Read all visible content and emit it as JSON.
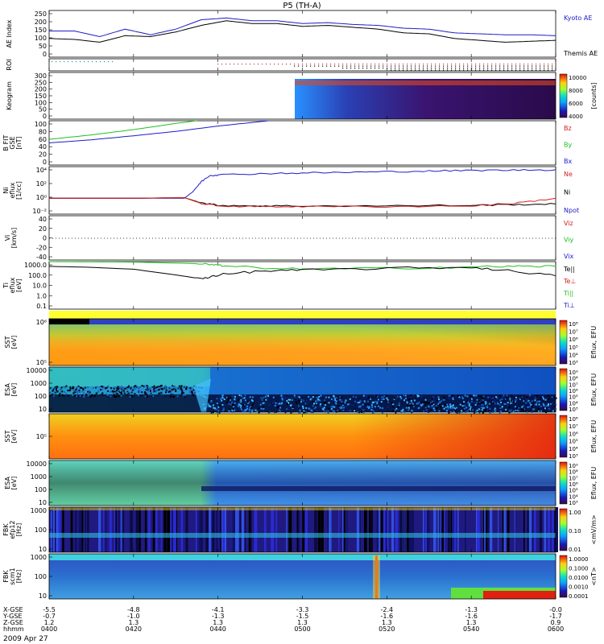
{
  "title": "P5 (TH-A)",
  "footer": {
    "rows": [
      {
        "label": "X-GSE",
        "values": [
          "-5.5",
          "-4.8",
          "-4.1",
          "-3.3",
          "-2.4",
          "-1.3",
          "-0.0"
        ]
      },
      {
        "label": "Y-GSE",
        "values": [
          "-0.7",
          "-1.0",
          "-1.3",
          "-1.5",
          "-1.6",
          "-1.6",
          "-1.7"
        ]
      },
      {
        "label": "Z-GSE",
        "values": [
          "1.2",
          "1.3",
          "1.3",
          "1.3",
          "1.3",
          "1.3",
          "0.9"
        ]
      },
      {
        "label": "hhmm",
        "values": [
          "0400",
          "0420",
          "0440",
          "0500",
          "0520",
          "0540",
          "0600"
        ]
      }
    ],
    "date": "2009 Apr 27"
  },
  "colors": {
    "blue": "#1c1cc8",
    "red": "#d42020",
    "green": "#20c020",
    "black": "#000000"
  },
  "chart_data": [
    {
      "id": "ae",
      "type": "line",
      "ylabel": [
        "AE Index"
      ],
      "yticks": [
        "250",
        "200",
        "150",
        "100",
        "50",
        "0"
      ],
      "ylim": [
        0,
        250
      ],
      "legend": [
        {
          "label": "Kyoto AE",
          "color": "#1c1cc8"
        },
        {
          "label": "Themis AE",
          "color": "#000000"
        }
      ],
      "series": [
        {
          "name": "Kyoto AE",
          "color": "#1c1cc8",
          "x": [
            0,
            6,
            12,
            18,
            24,
            30,
            36,
            42,
            48,
            54,
            60,
            66,
            72,
            78,
            84,
            90,
            96,
            102,
            108,
            114,
            120
          ],
          "values": [
            140,
            140,
            110,
            150,
            120,
            150,
            200,
            210,
            195,
            195,
            180,
            185,
            175,
            170,
            155,
            150,
            130,
            125,
            120,
            120,
            115
          ]
        },
        {
          "name": "Themis AE",
          "color": "#000000",
          "x": [
            0,
            6,
            12,
            18,
            24,
            30,
            36,
            42,
            48,
            54,
            60,
            66,
            72,
            78,
            84,
            90,
            96,
            102,
            108,
            114,
            120
          ],
          "values": [
            100,
            95,
            80,
            115,
            110,
            135,
            170,
            195,
            180,
            180,
            165,
            170,
            160,
            150,
            130,
            125,
            100,
            90,
            80,
            85,
            90
          ]
        }
      ]
    },
    {
      "id": "roi",
      "type": "scatter",
      "ylabel": [
        "ROI"
      ],
      "yticks": [],
      "legend": []
    },
    {
      "id": "keogram",
      "type": "heatmap",
      "ylabel": [
        "Keogram"
      ],
      "yticks": [
        "300",
        "250",
        "200",
        "150",
        "100",
        "50",
        "0"
      ],
      "ylim": [
        0,
        300
      ],
      "colorbar": {
        "label": "[counts]",
        "ticks": [
          "10000",
          "8000",
          "6000",
          "4000"
        ],
        "range": [
          4000,
          10000
        ]
      },
      "legend": []
    },
    {
      "id": "bfit",
      "type": "line",
      "ylabel": [
        "B FIT",
        "GSE",
        "[nT]"
      ],
      "yticks": [
        "100",
        "80",
        "60",
        "40",
        "20",
        "0"
      ],
      "ylim": [
        0,
        100
      ],
      "legend": [
        {
          "label": "Bz",
          "color": "#d42020"
        },
        {
          "label": "By",
          "color": "#20c020"
        },
        {
          "label": "Bx",
          "color": "#1c1cc8"
        }
      ],
      "series": [
        {
          "name": "By",
          "color": "#20c020",
          "x": [
            0,
            10,
            20,
            30,
            35
          ],
          "values": [
            58,
            68,
            80,
            94,
            100
          ]
        },
        {
          "name": "Bx",
          "color": "#1c1cc8",
          "x": [
            0,
            10,
            20,
            30,
            40,
            50,
            52
          ],
          "values": [
            50,
            57,
            66,
            76,
            88,
            98,
            100
          ]
        }
      ]
    },
    {
      "id": "ni",
      "type": "line",
      "ylabel": [
        "Ni",
        "eflux",
        "[1/cc]"
      ],
      "yticks": [
        "10⁴",
        "10²",
        "10⁰",
        "10⁻²"
      ],
      "ylog": true,
      "ylim": [
        -2.5,
        5
      ],
      "legend": [
        {
          "label": "Ne",
          "color": "#d42020"
        },
        {
          "label": "Ni",
          "color": "#000000"
        },
        {
          "label": "Npot",
          "color": "#1c1cc8"
        }
      ],
      "series": [
        {
          "name": "Npot",
          "color": "#1c1cc8",
          "x": [
            0,
            20,
            32,
            34,
            36,
            38,
            40,
            50,
            60,
            70,
            80,
            90,
            100,
            110,
            120
          ],
          "values": [
            0,
            0,
            0,
            1.0,
            2.6,
            3.6,
            3.7,
            3.9,
            4.0,
            4.1,
            4.2,
            4.3,
            4.4,
            4.45,
            4.5
          ]
        },
        {
          "name": "Ni",
          "color": "#000000",
          "x": [
            0,
            20,
            32,
            36,
            40,
            50,
            60,
            80,
            100,
            110,
            120
          ],
          "values": [
            0,
            0,
            0.1,
            -0.7,
            -1.1,
            -1.2,
            -1.2,
            -1.2,
            -1.1,
            -1.0,
            -0.9
          ]
        },
        {
          "name": "Ne",
          "color": "#d42020",
          "x": [
            0,
            20,
            32,
            36,
            40,
            50,
            60,
            80,
            100,
            110,
            120
          ],
          "values": [
            0,
            0,
            0.1,
            -0.8,
            -1.2,
            -1.3,
            -1.3,
            -1.3,
            -1.2,
            -0.8,
            0.0
          ]
        }
      ]
    },
    {
      "id": "vi",
      "type": "line",
      "ylabel": [
        "Vi",
        "[km/s]"
      ],
      "yticks": [
        "40",
        "20",
        "0",
        "-20",
        "-40"
      ],
      "ylim": [
        -50,
        50
      ],
      "legend": [
        {
          "label": "Viz",
          "color": "#d42020"
        },
        {
          "label": "Viy",
          "color": "#20c020"
        },
        {
          "label": "Vix",
          "color": "#1c1cc8"
        }
      ]
    },
    {
      "id": "ti",
      "type": "line",
      "ylabel": [
        "Ti",
        "eflux",
        "[eV]"
      ],
      "yticks": [
        "1000.0",
        "100.0",
        "10.0",
        "1.0",
        "0.1"
      ],
      "ylog": true,
      "ylim": [
        -1.5,
        3.5
      ],
      "legend": [
        {
          "label": "Te||",
          "color": "#000000"
        },
        {
          "label": "Te⊥",
          "color": "#d42020"
        },
        {
          "label": "Ti||",
          "color": "#20c020"
        },
        {
          "label": "Ti⊥",
          "color": "#1c1cc8"
        }
      ],
      "series": [
        {
          "name": "Ti||",
          "color": "#20c020",
          "x": [
            0,
            20,
            34,
            38,
            42,
            60,
            80,
            100,
            110,
            120
          ],
          "values": [
            3.5,
            3.45,
            3.3,
            3.2,
            3.0,
            2.7,
            2.8,
            2.95,
            3.0,
            3.0
          ]
        },
        {
          "name": "Te||",
          "color": "#000000",
          "x": [
            0,
            10,
            20,
            30,
            36,
            40,
            50,
            60,
            80,
            100,
            110,
            120
          ],
          "values": [
            3.0,
            2.9,
            2.7,
            2.1,
            1.7,
            2.1,
            2.5,
            2.6,
            2.8,
            2.9,
            2.5,
            2.0
          ]
        }
      ]
    },
    {
      "id": "sst-e",
      "type": "heatmap",
      "ylabel": [
        "SST",
        "[eV]"
      ],
      "yticks": [
        "10⁶",
        "10⁵"
      ],
      "colorbar": {
        "label": "Eflux, EFU",
        "ticks": [
          "10⁸",
          "10⁷",
          "10⁶",
          "10⁵",
          "10⁴",
          "10³"
        ]
      },
      "legend": []
    },
    {
      "id": "esa-e",
      "type": "heatmap",
      "ylabel": [
        "ESA",
        "[eV]"
      ],
      "yticks": [
        "10000",
        "1000",
        "100",
        "10"
      ],
      "colorbar": {
        "label": "Eflux, EFU",
        "ticks": [
          "10⁹",
          "10⁸",
          "10⁷",
          "10⁶",
          "10⁵",
          "10⁴",
          "10³"
        ]
      },
      "legend": []
    },
    {
      "id": "sst-i",
      "type": "heatmap",
      "ylabel": [
        "SST",
        "[eV]"
      ],
      "yticks": [
        "10⁵"
      ],
      "colorbar": {
        "label": "Eflux, EFU",
        "ticks": [
          "10⁸",
          "10⁷",
          "10⁶",
          "10⁵",
          "10⁴",
          "10³"
        ]
      },
      "legend": []
    },
    {
      "id": "esa-i",
      "type": "heatmap",
      "ylabel": [
        "ESA",
        "[eV]"
      ],
      "yticks": [
        "10000",
        "1000",
        "100",
        "10"
      ],
      "colorbar": {
        "label": "Eflux, EFU",
        "ticks": [
          "10⁹",
          "10⁸",
          "10⁷",
          "10⁶",
          "10⁵",
          "10⁴",
          "10³"
        ]
      },
      "legend": []
    },
    {
      "id": "fbk-e",
      "type": "heatmap",
      "ylabel": [
        "FBK",
        "efp12",
        "[Hz]"
      ],
      "yticks": [
        "1000",
        "100",
        "10"
      ],
      "colorbar": {
        "label": "<mV/m>",
        "ticks": [
          "1.00",
          "0.10",
          "0.01"
        ]
      },
      "legend": []
    },
    {
      "id": "fbk-b",
      "type": "heatmap",
      "ylabel": [
        "FBK",
        "scm1",
        "[Hz]"
      ],
      "yticks": [
        "1000",
        "100",
        "10"
      ],
      "colorbar": {
        "label": "<nT>",
        "ticks": [
          "1.0000",
          "0.1000",
          "0.0100",
          "0.0010",
          "0.0001"
        ]
      },
      "legend": []
    }
  ]
}
